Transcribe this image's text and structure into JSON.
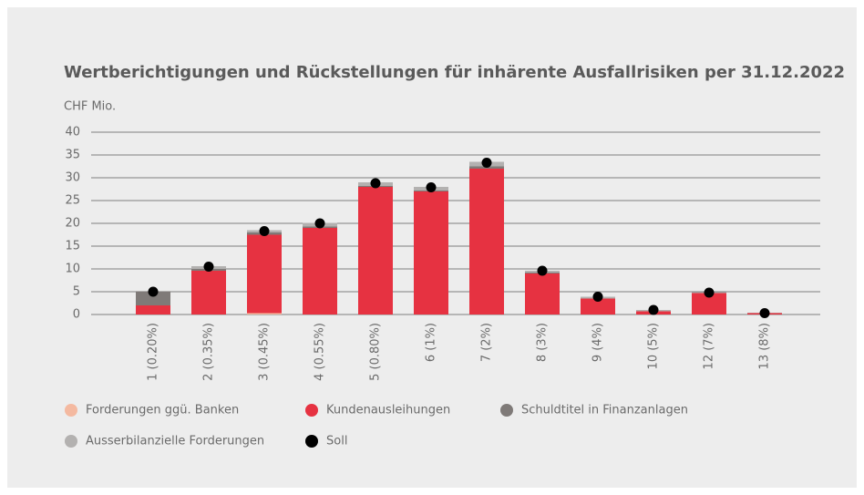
{
  "chart_data": {
    "type": "bar",
    "stacked": true,
    "title": "Wertberichtigungen und Rückstellungen für inhärente Ausfallrisiken per 31.12.2022",
    "y_label": "CHF Mio.",
    "categories": [
      "1 (0.20%)",
      "2 (0.35%)",
      "3 (0.45%)",
      "4 (0.55%)",
      "5 (0.80%)",
      "6 (1%)",
      "7 (2%)",
      "8 (3%)",
      "9 (4%)",
      "10 (5%)",
      "12 (7%)",
      "13 (8%)"
    ],
    "series": [
      {
        "name": "Forderungen ggü. Banken",
        "color": "#f4b9a0",
        "values": [
          0,
          0,
          0.3,
          0,
          0,
          0,
          0,
          0,
          0,
          0,
          0,
          0
        ]
      },
      {
        "name": "Kundenausleihungen",
        "color": "#e63241",
        "values": [
          2,
          9.6,
          17.2,
          19,
          28,
          27,
          32,
          9,
          3.5,
          0.7,
          4.7,
          0.3
        ]
      },
      {
        "name": "Schuldtitel in Finanzanlagen",
        "color": "#7f7a78",
        "values": [
          3,
          0.4,
          0.5,
          0.3,
          0.2,
          0.2,
          0.5,
          0.2,
          0,
          0,
          0,
          0
        ]
      },
      {
        "name": "Ausserbilanzielle Forderungen",
        "color": "#b3b1b0",
        "values": [
          0.2,
          0.6,
          0.5,
          0.8,
          0.8,
          0.8,
          1,
          0.4,
          0.4,
          0.3,
          0.2,
          0.1
        ]
      },
      {
        "name": "Soll",
        "color": "#000000",
        "type": "scatter",
        "values": [
          5,
          10.5,
          18.3,
          20,
          28.8,
          27.9,
          33.3,
          9.6,
          3.9,
          1,
          4.8,
          0.3
        ]
      }
    ],
    "ylim": [
      0,
      40
    ],
    "yticks": [
      0,
      5,
      10,
      15,
      20,
      25,
      30,
      35,
      40
    ],
    "grid": true
  }
}
